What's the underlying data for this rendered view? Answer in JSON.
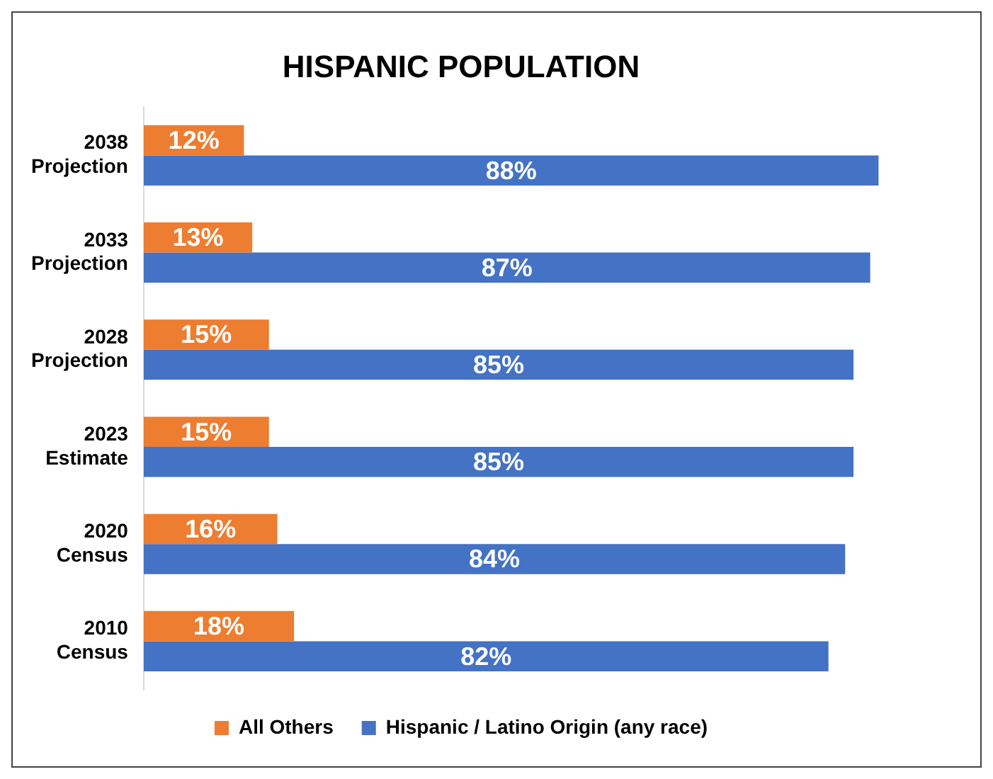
{
  "chart_data": {
    "type": "bar",
    "orientation": "horizontal",
    "title": "HISPANIC POPULATION",
    "categories": [
      "2038 Projection",
      "2033 Projection",
      "2028 Projection",
      "2023 Estimate",
      "2020 Census",
      "2010 Census"
    ],
    "series": [
      {
        "name": "All Others",
        "color": "#ed7d31",
        "values": [
          12,
          13,
          15,
          15,
          16,
          18
        ],
        "value_labels": [
          "12%",
          "13%",
          "15%",
          "15%",
          "16%",
          "18%"
        ]
      },
      {
        "name": "Hispanic / Latino Origin (any race)",
        "color": "#4472c4",
        "values": [
          88,
          87,
          85,
          85,
          84,
          82
        ],
        "value_labels": [
          "88%",
          "87%",
          "85%",
          "85%",
          "84%",
          "82%"
        ]
      }
    ],
    "legend": "bottom",
    "grid": false,
    "tick_labels": "y"
  }
}
